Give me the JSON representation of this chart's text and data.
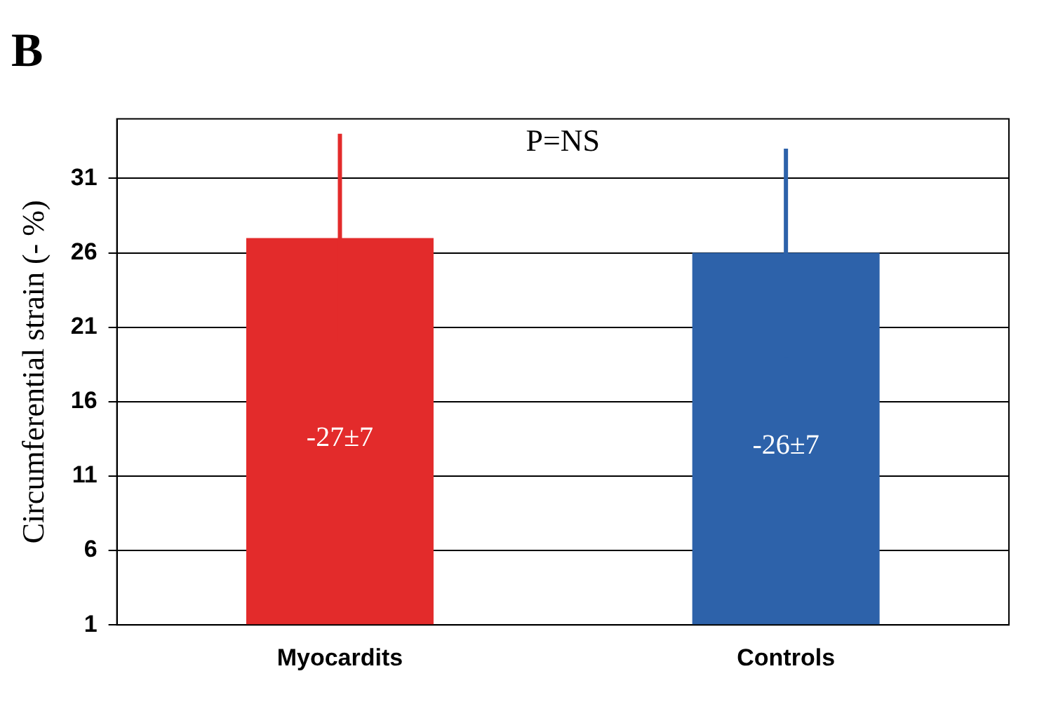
{
  "chart_data": {
    "type": "bar",
    "title": "B",
    "ylabel": "Circumferential strain (- %)",
    "categories": [
      "Myocardits",
      "Controls"
    ],
    "values": [
      27,
      26
    ],
    "colors": [
      "#e32b2b",
      "#2d62aa"
    ],
    "errors": [
      7,
      7
    ],
    "annotations": [
      "P=NS",
      "-27±7",
      "-26±7"
    ],
    "ylim": [
      1,
      35
    ],
    "yticks": [
      1,
      6,
      11,
      16,
      21,
      26,
      31
    ],
    "grid": "y",
    "legend": false
  }
}
